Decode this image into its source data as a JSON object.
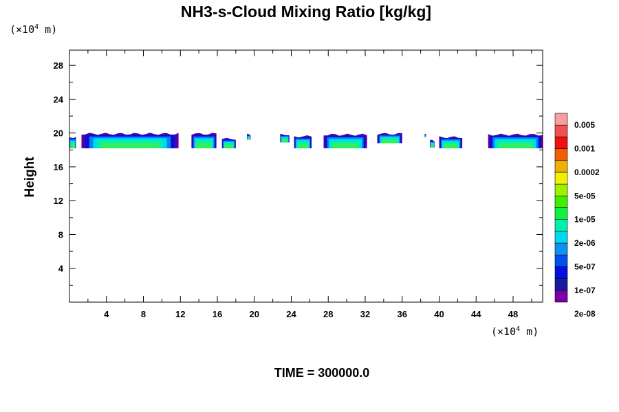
{
  "chart_data": {
    "type": "heatmap",
    "title": "NH3-s-Cloud Mixing Ratio [kg/kg]",
    "x_unit": {
      "prefix": "(×10",
      "exp": "4",
      "suffix": " m)"
    },
    "y_unit": {
      "prefix": "(×10",
      "exp": "4",
      "suffix": " m)"
    },
    "ylabel": "Height",
    "xlim": [
      0,
      51.2
    ],
    "ylim": [
      0,
      29.8
    ],
    "x_ticks": [
      "4",
      "8",
      "12",
      "16",
      "20",
      "24",
      "28",
      "32",
      "36",
      "40",
      "44",
      "48"
    ],
    "y_ticks": [
      "4",
      "8",
      "12",
      "16",
      "20",
      "24",
      "28"
    ],
    "footer": "TIME = 300000.0",
    "colorbar": {
      "labels": [
        "0.005",
        "0.001",
        "0.0002",
        "5e-05",
        "1e-05",
        "2e-06",
        "5e-07",
        "1e-07",
        "2e-08"
      ],
      "colors": [
        "#7a00a8",
        "#1a1aa0",
        "#0010e0",
        "#0050f0",
        "#1090f0",
        "#00d8f0",
        "#00f0b0",
        "#10f040",
        "#40f000",
        "#a0f000",
        "#f0f000",
        "#f0b000",
        "#f06000",
        "#f01010",
        "#f05050",
        "#f8a0a0"
      ]
    },
    "cloud_segments": [
      {
        "x": [
          0.0,
          0.7
        ],
        "top": 19.5,
        "base": 18.2
      },
      {
        "x": [
          1.3,
          11.8
        ],
        "top": 19.9,
        "base": 18.2
      },
      {
        "x": [
          13.2,
          15.9
        ],
        "top": 19.9,
        "base": 18.2
      },
      {
        "x": [
          16.5,
          18.0
        ],
        "top": 19.3,
        "base": 18.2
      },
      {
        "x": [
          19.2,
          19.6
        ],
        "top": 19.8,
        "base": 19.2
      },
      {
        "x": [
          22.8,
          23.8
        ],
        "top": 19.8,
        "base": 18.9
      },
      {
        "x": [
          24.3,
          26.2
        ],
        "top": 19.6,
        "base": 18.2
      },
      {
        "x": [
          27.5,
          32.2
        ],
        "top": 19.8,
        "base": 18.2
      },
      {
        "x": [
          33.3,
          36.0
        ],
        "top": 19.9,
        "base": 18.8
      },
      {
        "x": [
          38.4,
          38.6
        ],
        "top": 19.8,
        "base": 19.5
      },
      {
        "x": [
          39.0,
          39.5
        ],
        "top": 19.1,
        "base": 18.3
      },
      {
        "x": [
          40.0,
          42.5
        ],
        "top": 19.5,
        "base": 18.2
      },
      {
        "x": [
          45.3,
          51.2
        ],
        "top": 19.8,
        "base": 18.2
      }
    ]
  }
}
